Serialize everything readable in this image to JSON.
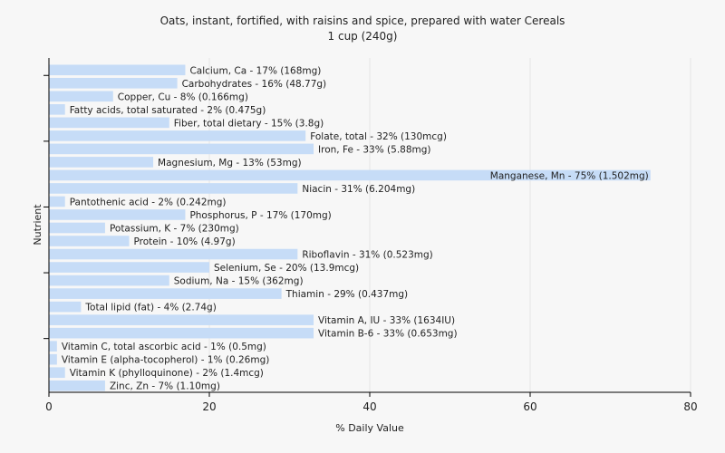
{
  "chart_data": {
    "type": "bar",
    "orientation": "horizontal",
    "title": "Oats, instant, fortified, with raisins and spice, prepared with water Cereals",
    "subtitle": "1 cup (240g)",
    "xlabel": "% Daily Value",
    "ylabel": "Nutrient",
    "xlim": [
      0,
      80
    ],
    "xticks": [
      0,
      20,
      40,
      60,
      80
    ],
    "grid": true,
    "bar_color": "#c6dcf7",
    "categories": [
      "Calcium, Ca - 17% (168mg)",
      "Carbohydrates - 16% (48.77g)",
      "Copper, Cu - 8% (0.166mg)",
      "Fatty acids, total saturated - 2% (0.475g)",
      "Fiber, total dietary - 15% (3.8g)",
      "Folate, total - 32% (130mcg)",
      "Iron, Fe - 33% (5.88mg)",
      "Magnesium, Mg - 13% (53mg)",
      "Manganese, Mn - 75% (1.502mg)",
      "Niacin - 31% (6.204mg)",
      "Pantothenic acid - 2% (0.242mg)",
      "Phosphorus, P - 17% (170mg)",
      "Potassium, K - 7% (230mg)",
      "Protein - 10% (4.97g)",
      "Riboflavin - 31% (0.523mg)",
      "Selenium, Se - 20% (13.9mcg)",
      "Sodium, Na - 15% (362mg)",
      "Thiamin - 29% (0.437mg)",
      "Total lipid (fat) - 4% (2.74g)",
      "Vitamin A, IU - 33% (1634IU)",
      "Vitamin B-6 - 33% (0.653mg)",
      "Vitamin C, total ascorbic acid - 1% (0.5mg)",
      "Vitamin E (alpha-tocopherol) - 1% (0.26mg)",
      "Vitamin K (phylloquinone) - 2% (1.4mcg)",
      "Zinc, Zn - 7% (1.10mg)"
    ],
    "values": [
      17,
      16,
      8,
      2,
      15,
      32,
      33,
      13,
      75,
      31,
      2,
      17,
      7,
      10,
      31,
      20,
      15,
      29,
      4,
      33,
      33,
      1,
      1,
      2,
      7
    ]
  }
}
